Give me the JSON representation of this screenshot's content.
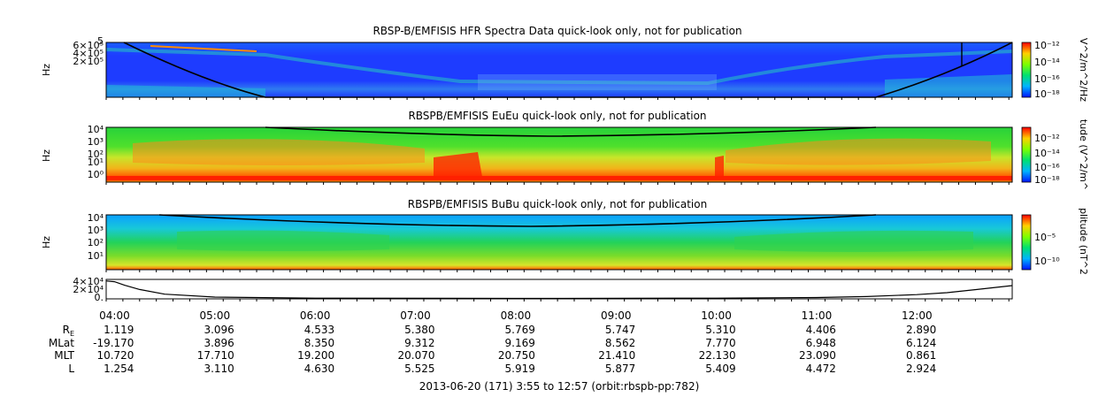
{
  "chart_data": [
    {
      "type": "heatmap",
      "title": "RBSP-B/EMFISIS  HFR Spectra Data quick-look only, not for publication",
      "ylabel": "Hz",
      "y_ticks": [
        "2×10⁵",
        "4×10⁵",
        "6×10⁵"
      ],
      "y_top_tick": "5",
      "colorbar_label": "V^2/m^2/Hz",
      "colorbar_ticks": [
        "10⁻¹²",
        "10⁻¹⁴",
        "10⁻¹⁶",
        "10⁻¹⁸"
      ],
      "overlay_curve": "upper-hybrid / cyclotron line (black)"
    },
    {
      "type": "heatmap",
      "title": "RBSPB/EMFISIS  EuEu quick-look only, not for publication",
      "ylabel": "Hz",
      "y_ticks": [
        "10⁴",
        "10³",
        "10²",
        "10¹",
        "10⁰"
      ],
      "colorbar_label": "tude (V^2/m^",
      "colorbar_ticks": [
        "10⁻¹²",
        "10⁻¹⁴",
        "10⁻¹⁶",
        "10⁻¹⁸"
      ]
    },
    {
      "type": "heatmap",
      "title": "RBSPB/EMFISIS  BuBu quick-look only, not for publication",
      "ylabel": "Hz",
      "y_ticks": [
        "10⁴",
        "10³",
        "10²",
        "10¹"
      ],
      "colorbar_label": "plitude (nT^2",
      "colorbar_ticks": [
        "10⁻⁵",
        "10⁻¹⁰"
      ]
    },
    {
      "type": "line",
      "y_ticks": [
        "4×10⁴",
        "2×10⁴",
        "0."
      ],
      "x_hours": [
        3.92,
        4.0,
        4.1,
        4.25,
        4.5,
        5.0,
        6.0,
        8.0,
        10.0,
        11.0,
        11.5,
        12.0,
        12.3,
        12.6,
        12.95
      ],
      "values": [
        46000,
        44000,
        35000,
        24000,
        12000,
        4500,
        1800,
        1200,
        1800,
        3500,
        6000,
        11000,
        16000,
        24000,
        34000
      ]
    }
  ],
  "time_axis": {
    "start": "3:55",
    "end": "12:57",
    "ticks": [
      "04:00",
      "05:00",
      "06:00",
      "07:00",
      "08:00",
      "09:00",
      "10:00",
      "11:00",
      "12:00"
    ]
  },
  "ephemeris": {
    "rows": [
      {
        "label": "R",
        "sub": "E",
        "values": [
          "1.119",
          "3.096",
          "4.533",
          "5.380",
          "5.769",
          "5.747",
          "5.310",
          "4.406",
          "2.890"
        ]
      },
      {
        "label": "MLat",
        "values": [
          "-19.170",
          "3.896",
          "8.350",
          "9.312",
          "9.169",
          "8.562",
          "7.770",
          "6.948",
          "6.124"
        ]
      },
      {
        "label": "MLT",
        "values": [
          "10.720",
          "17.710",
          "19.200",
          "20.070",
          "20.750",
          "21.410",
          "22.130",
          "23.090",
          "0.861"
        ]
      },
      {
        "label": "L",
        "values": [
          "1.254",
          "3.110",
          "4.630",
          "5.525",
          "5.919",
          "5.877",
          "5.409",
          "4.472",
          "2.924"
        ]
      }
    ]
  },
  "footer": "2013-06-20 (171) 3:55 to 12:57 (orbit:rbspb-pp:782)",
  "colors": {
    "background_blue": "#1e3cff",
    "spectrum_green": "#27d23a",
    "spectrum_yellow": "#e8e62a",
    "spectrum_red": "#ff2a00",
    "curve": "#000000"
  }
}
